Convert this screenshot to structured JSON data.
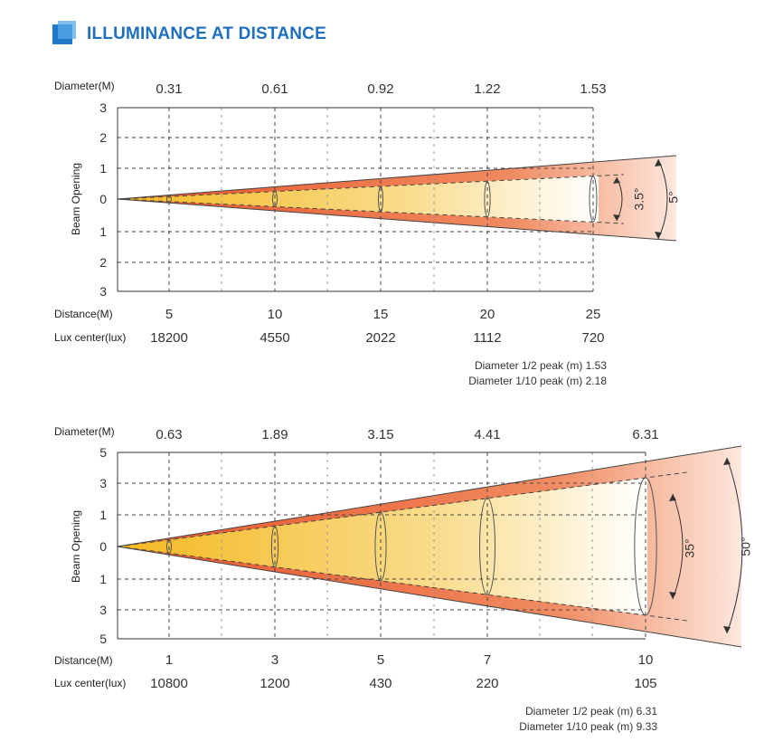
{
  "header": {
    "title": "ILLUMINANCE AT DISTANCE"
  },
  "colors": {
    "accent": "#1f6fbf",
    "beam_edge": "#e8552a",
    "beam_core": "#f7c236",
    "grid": "#333333"
  },
  "chart_data": [
    {
      "type": "beam-diagram",
      "diameter_label": "Diameter(M)",
      "diameters": [
        "0.31",
        "0.61",
        "0.92",
        "1.22",
        "1.53"
      ],
      "ylabel": "Beam Opening",
      "y_ticks": [
        "3",
        "2",
        "1",
        "0",
        "1",
        "2",
        "3"
      ],
      "distance_label": "Distance(M)",
      "distances": [
        "5",
        "10",
        "15",
        "20",
        "25"
      ],
      "lux_label": "Lux center(lux)",
      "lux": [
        "18200",
        "4550",
        "2022",
        "1112",
        "720"
      ],
      "inner_angle": "3.5°",
      "outer_angle": "5°",
      "notes": [
        "Diameter 1/2 peak (m) 1.53",
        "Diameter 1/10 peak (m) 2.18"
      ]
    },
    {
      "type": "beam-diagram",
      "diameter_label": "Diameter(M)",
      "diameters": [
        "0.63",
        "1.89",
        "3.15",
        "4.41",
        "6.31"
      ],
      "ylabel": "Beam Opening",
      "y_ticks": [
        "5",
        "3",
        "1",
        "0",
        "1",
        "3",
        "5"
      ],
      "distance_label": "Distance(M)",
      "distances": [
        "1",
        "3",
        "5",
        "7",
        "10"
      ],
      "lux_label": "Lux center(lux)",
      "lux": [
        "10800",
        "1200",
        "430",
        "220",
        "105"
      ],
      "inner_angle": "35°",
      "outer_angle": "50°",
      "notes": [
        "Diameter 1/2 peak (m) 6.31",
        "Diameter 1/10 peak (m) 9.33"
      ]
    }
  ]
}
